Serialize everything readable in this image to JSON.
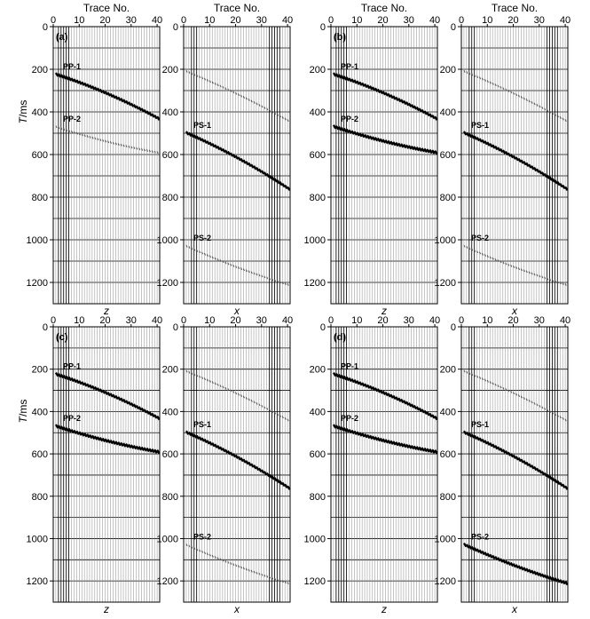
{
  "chart_data": {
    "type": "scatter",
    "top_title": "Trace No.",
    "y_label_main": "T",
    "y_label_unit": "/ms",
    "x_ticks": [
      "0",
      "10",
      "20",
      "30",
      "40"
    ],
    "y_ticks": [
      "0",
      "200",
      "400",
      "600",
      "800",
      "1000",
      "1200"
    ],
    "xlim": [
      0,
      41
    ],
    "ylim": [
      0,
      1300
    ],
    "grid": true,
    "panels": [
      {
        "label": "(a)",
        "component": "z",
        "show_top_title": true,
        "show_ylabel": true,
        "events": [
          {
            "name": "PP-1",
            "t0": 225,
            "t1": 430,
            "curv": -0.25,
            "strength": "strong",
            "show_label": true
          },
          {
            "name": "PP-2",
            "t0": 470,
            "t1": 590,
            "curv": 0.3,
            "strength": "faint",
            "show_label": true
          }
        ]
      },
      {
        "label": "",
        "component": "x",
        "show_top_title": true,
        "show_ylabel": false,
        "events": [
          {
            "name": "PS-1",
            "t0": 500,
            "t1": 760,
            "curv": -0.2,
            "strength": "strong",
            "show_label": true
          },
          {
            "name": "PS-2",
            "t0": 1030,
            "t1": 1210,
            "curv": 0.2,
            "strength": "faint",
            "show_label": true
          },
          {
            "name": "ghost",
            "t0": 210,
            "t1": 440,
            "curv": -0.15,
            "strength": "faint",
            "show_label": false
          }
        ]
      },
      {
        "label": "(b)",
        "component": "z",
        "show_top_title": true,
        "show_ylabel": false,
        "events": [
          {
            "name": "PP-1",
            "t0": 225,
            "t1": 430,
            "curv": -0.25,
            "strength": "strong",
            "show_label": true
          },
          {
            "name": "PP-2",
            "t0": 470,
            "t1": 590,
            "curv": 0.3,
            "strength": "strong",
            "show_label": true
          }
        ]
      },
      {
        "label": "",
        "component": "x",
        "show_top_title": true,
        "show_ylabel": false,
        "events": [
          {
            "name": "PS-1",
            "t0": 500,
            "t1": 760,
            "curv": -0.2,
            "strength": "strong",
            "show_label": true
          },
          {
            "name": "PS-2",
            "t0": 1030,
            "t1": 1210,
            "curv": 0.2,
            "strength": "faint",
            "show_label": true
          },
          {
            "name": "ghost",
            "t0": 210,
            "t1": 440,
            "curv": -0.15,
            "strength": "faint",
            "show_label": false
          }
        ]
      },
      {
        "label": "(c)",
        "component": "z",
        "show_top_title": false,
        "show_ylabel": true,
        "events": [
          {
            "name": "PP-1",
            "t0": 225,
            "t1": 430,
            "curv": -0.25,
            "strength": "strong",
            "show_label": true
          },
          {
            "name": "PP-2",
            "t0": 470,
            "t1": 590,
            "curv": 0.3,
            "strength": "strong",
            "show_label": true
          }
        ]
      },
      {
        "label": "",
        "component": "x",
        "show_top_title": false,
        "show_ylabel": false,
        "events": [
          {
            "name": "PS-1",
            "t0": 500,
            "t1": 760,
            "curv": -0.2,
            "strength": "strong",
            "show_label": true
          },
          {
            "name": "PS-2",
            "t0": 1030,
            "t1": 1210,
            "curv": 0.2,
            "strength": "faint",
            "show_label": true
          },
          {
            "name": "ghost",
            "t0": 210,
            "t1": 440,
            "curv": -0.15,
            "strength": "faint",
            "show_label": false
          }
        ]
      },
      {
        "label": "(d)",
        "component": "z",
        "show_top_title": false,
        "show_ylabel": false,
        "events": [
          {
            "name": "PP-1",
            "t0": 225,
            "t1": 430,
            "curv": -0.25,
            "strength": "strong",
            "show_label": true
          },
          {
            "name": "PP-2",
            "t0": 470,
            "t1": 590,
            "curv": 0.3,
            "strength": "strong",
            "show_label": true
          }
        ]
      },
      {
        "label": "",
        "component": "x",
        "show_top_title": false,
        "show_ylabel": false,
        "events": [
          {
            "name": "PS-1",
            "t0": 500,
            "t1": 760,
            "curv": -0.2,
            "strength": "strong",
            "show_label": true
          },
          {
            "name": "PS-2",
            "t0": 1030,
            "t1": 1210,
            "curv": 0.2,
            "strength": "strong",
            "show_label": true
          },
          {
            "name": "ghost",
            "t0": 210,
            "t1": 440,
            "curv": -0.15,
            "strength": "faint",
            "show_label": false
          }
        ]
      }
    ]
  }
}
